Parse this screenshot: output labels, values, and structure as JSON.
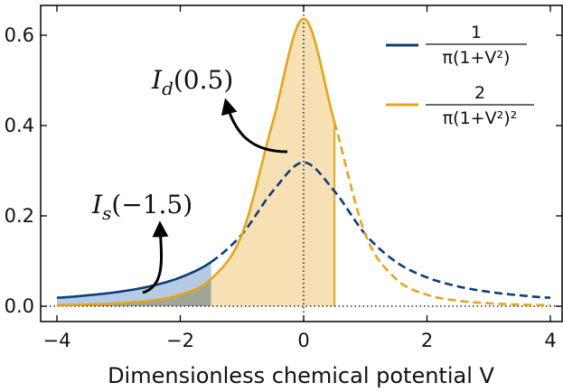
{
  "chart_data": {
    "type": "line",
    "xlabel": "Dimensionless chemical potential V",
    "xlim": [
      -4,
      4
    ],
    "ylim": [
      -0.03,
      0.66
    ],
    "xticks": [
      -4,
      -2,
      0,
      2,
      4
    ],
    "xtick_labels": [
      "−4",
      "−2",
      "0",
      "2",
      "4"
    ],
    "yticks": [
      0.0,
      0.2,
      0.4,
      0.6
    ],
    "ytick_labels": [
      "0.0",
      "0.2",
      "0.4",
      "0.6"
    ],
    "grid": false,
    "legend_position": "top-right",
    "series": [
      {
        "name": "1/(π(1+V²))",
        "legend_numerator": "1",
        "legend_denominator": "π(1+V²)",
        "color": "#0b3d7a",
        "x": [
          -4,
          -3.5,
          -3,
          -2.5,
          -2,
          -1.5,
          -1,
          -0.5,
          0,
          0.5,
          1,
          1.5,
          2,
          2.5,
          3,
          3.5,
          4
        ],
        "values": [
          0.0187,
          0.0241,
          0.0318,
          0.0439,
          0.0637,
          0.0979,
          0.1592,
          0.2546,
          0.3183,
          0.2546,
          0.1592,
          0.0979,
          0.0637,
          0.0439,
          0.0318,
          0.0241,
          0.0187
        ],
        "solid_range": [
          -4,
          -1.5
        ]
      },
      {
        "name": "2/(π(1+V²)²)",
        "legend_numerator": "2",
        "legend_denominator": "π(1+V²)²",
        "color": "#e3a51c",
        "x": [
          -4,
          -3.5,
          -3,
          -2.5,
          -2,
          -1.5,
          -1,
          -0.5,
          0,
          0.5,
          1,
          1.5,
          2,
          2.5,
          3,
          3.5,
          4
        ],
        "values": [
          0.0022,
          0.0036,
          0.0064,
          0.0121,
          0.0255,
          0.0603,
          0.1592,
          0.4074,
          0.6366,
          0.4074,
          0.1592,
          0.0603,
          0.0255,
          0.0121,
          0.0064,
          0.0036,
          0.0022
        ],
        "solid_range": [
          -4,
          0.5
        ]
      }
    ],
    "shaded_regions": [
      {
        "series": "1/(π(1+V²))",
        "from": -4,
        "to": -1.5,
        "color": "#6b98c8"
      },
      {
        "series": "2/(π(1+V²)²)",
        "from": -1.5,
        "to": 0.5,
        "color": "#f3d494"
      }
    ],
    "reference_lines": [
      {
        "orientation": "vertical",
        "value": 0,
        "style": "dotted"
      },
      {
        "orientation": "horizontal",
        "value": 0,
        "style": "dotted"
      }
    ],
    "annotations": [
      {
        "script": "I",
        "subscript": "d",
        "argument": "(0.5)"
      },
      {
        "script": "I",
        "subscript": "s",
        "argument": "(−1.5)"
      }
    ]
  }
}
